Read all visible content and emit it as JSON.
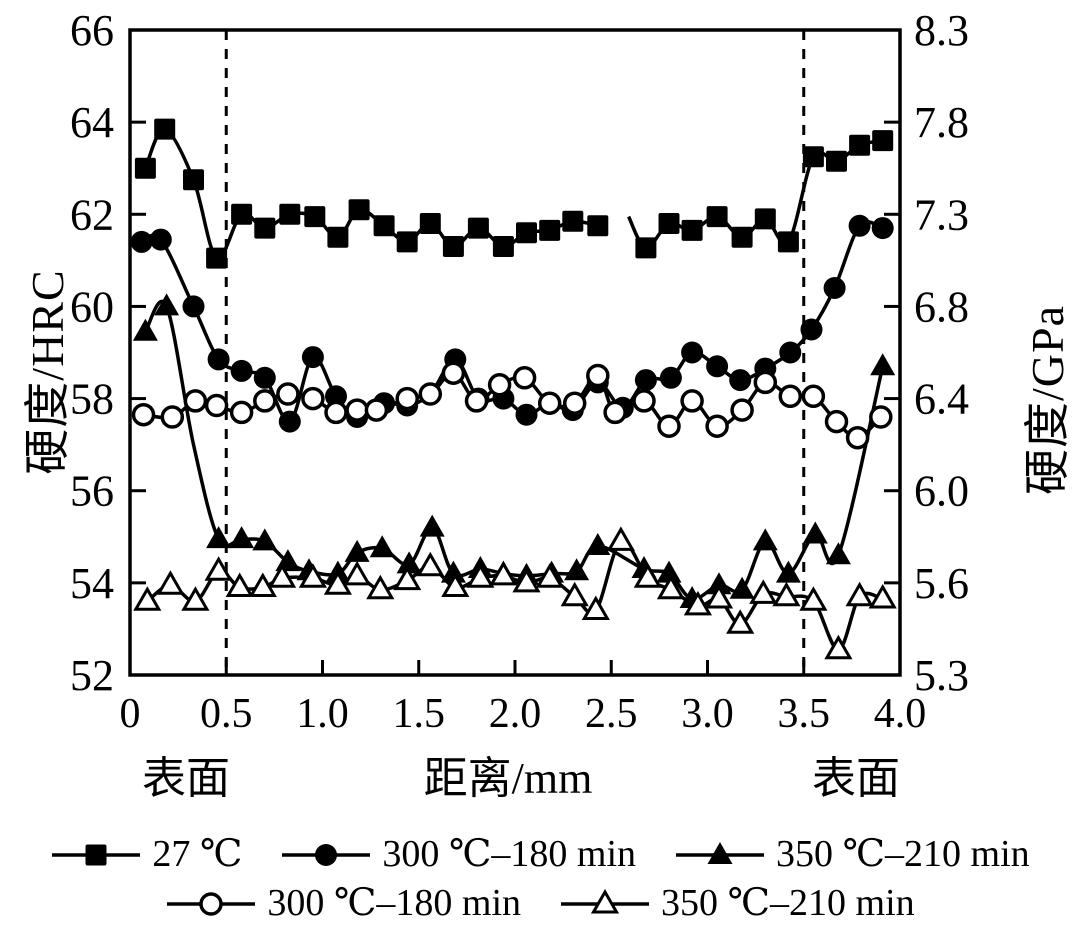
{
  "figure": {
    "background": "#ffffff",
    "ink_color": "#000000"
  },
  "chart_data": {
    "type": "line",
    "title": "",
    "xlabel": "距离/mm",
    "ylabel_left": "硬度/HRC",
    "ylabel_right": "硬度/GPa",
    "surface_left": "表面",
    "surface_right": "表面",
    "xlim": [
      0,
      4.0
    ],
    "ylim_left": [
      52,
      66
    ],
    "grid": "off",
    "guides_x_dashed": [
      0.5,
      3.5
    ],
    "x_ticks": {
      "values": [
        0,
        0.5,
        1.0,
        1.5,
        2.0,
        2.5,
        3.0,
        3.5,
        4.0
      ],
      "labels": [
        "0",
        "0.5",
        "1.0",
        "1.5",
        "2.0",
        "2.5",
        "3.0",
        "3.5",
        "4.0"
      ]
    },
    "y_left_ticks": {
      "values": [
        66,
        64,
        62,
        60,
        58,
        56,
        54,
        52
      ],
      "labels": [
        "66",
        "64",
        "62",
        "60",
        "58",
        "56",
        "54",
        "52"
      ]
    },
    "y_right_ticks": {
      "at_left_value": [
        66,
        64,
        62,
        60,
        58,
        56,
        54,
        52
      ],
      "labels": [
        "8.3",
        "7.8",
        "7.3",
        "6.8",
        "6.4",
        "6.0",
        "5.6",
        "5.3"
      ]
    },
    "legend_rows": [
      [
        0,
        1,
        2
      ],
      [
        3,
        4
      ]
    ],
    "series": [
      {
        "name": "27 ℃",
        "marker": "square-filled",
        "axis": "left-HRC",
        "x": [
          0.08,
          0.18,
          0.33,
          0.45,
          0.58,
          0.7,
          0.83,
          0.96,
          1.08,
          1.19,
          1.32,
          1.44,
          1.56,
          1.68,
          1.81,
          1.94,
          2.06,
          2.18,
          2.3,
          2.43,
          2.59,
          2.68,
          2.8,
          2.92,
          3.05,
          3.18,
          3.3,
          3.42,
          3.55,
          3.67,
          3.79,
          3.91
        ],
        "y": [
          63.0,
          63.85,
          62.75,
          61.05,
          62.0,
          61.7,
          62.0,
          61.95,
          61.5,
          62.1,
          61.75,
          61.4,
          61.8,
          61.3,
          61.7,
          61.3,
          61.6,
          61.65,
          61.85,
          61.75,
          61.95,
          61.27,
          61.8,
          61.65,
          61.95,
          61.5,
          61.9,
          61.4,
          63.25,
          63.15,
          63.5,
          63.6
        ],
        "no_marker": [
          20
        ],
        "breaks": [
          20
        ]
      },
      {
        "name": "300 ℃–180 min",
        "marker": "circle-filled",
        "axis": "left-HRC",
        "x": [
          0.06,
          0.16,
          0.33,
          0.46,
          0.58,
          0.7,
          0.83,
          0.95,
          1.07,
          1.18,
          1.32,
          1.44,
          1.56,
          1.69,
          1.81,
          1.94,
          2.06,
          2.18,
          2.3,
          2.43,
          2.56,
          2.68,
          2.81,
          2.92,
          3.05,
          3.17,
          3.3,
          3.43,
          3.54,
          3.66,
          3.79,
          3.91
        ],
        "y": [
          61.4,
          61.45,
          60.0,
          58.85,
          58.6,
          58.45,
          57.5,
          58.9,
          58.05,
          57.6,
          57.9,
          57.85,
          58.1,
          58.85,
          58.0,
          58.0,
          57.65,
          57.9,
          57.75,
          58.35,
          57.8,
          58.4,
          58.45,
          59.0,
          58.7,
          58.4,
          58.65,
          59.0,
          59.5,
          60.4,
          61.75,
          61.7
        ],
        "no_marker": [],
        "breaks": []
      },
      {
        "name": "350 ℃–210 min",
        "marker": "triangle-filled",
        "axis": "left-HRC",
        "x": [
          0.08,
          0.19,
          0.33,
          0.46,
          0.58,
          0.7,
          0.82,
          0.93,
          1.08,
          1.18,
          1.31,
          1.45,
          1.57,
          1.68,
          1.82,
          1.94,
          2.06,
          2.19,
          2.32,
          2.43,
          2.67,
          2.8,
          2.92,
          3.06,
          3.18,
          3.3,
          3.42,
          3.56,
          3.68,
          3.91
        ],
        "y": [
          59.45,
          60.0,
          57.0,
          54.95,
          54.95,
          54.9,
          54.45,
          54.25,
          54.2,
          54.65,
          54.75,
          54.4,
          55.2,
          54.2,
          54.3,
          54.2,
          54.15,
          54.2,
          54.25,
          54.8,
          54.3,
          54.2,
          53.65,
          53.95,
          53.85,
          54.9,
          54.2,
          55.05,
          54.6,
          58.7
        ],
        "no_marker": [
          2
        ],
        "breaks": []
      },
      {
        "name": "300 ℃–180 min",
        "marker": "circle-open",
        "axis": "right-GPa",
        "x": [
          0.07,
          0.22,
          0.34,
          0.45,
          0.58,
          0.7,
          0.82,
          0.95,
          1.07,
          1.18,
          1.28,
          1.44,
          1.56,
          1.68,
          1.8,
          1.92,
          2.05,
          2.18,
          2.31,
          2.43,
          2.52,
          2.67,
          2.8,
          2.92,
          3.05,
          3.18,
          3.3,
          3.43,
          3.55,
          3.67,
          3.78,
          3.9
        ],
        "y": [
          57.65,
          57.6,
          57.95,
          57.85,
          57.7,
          57.95,
          58.1,
          58.0,
          57.7,
          57.75,
          57.75,
          58.0,
          58.1,
          58.55,
          57.95,
          58.3,
          58.45,
          57.9,
          57.9,
          58.5,
          57.7,
          57.95,
          57.4,
          57.95,
          57.4,
          57.75,
          58.35,
          58.05,
          58.05,
          57.5,
          57.15,
          57.6
        ],
        "no_marker": [],
        "breaks": []
      },
      {
        "name": "350 ℃–210 min",
        "marker": "triangle-open",
        "axis": "right-GPa",
        "x": [
          0.09,
          0.21,
          0.34,
          0.46,
          0.57,
          0.69,
          0.79,
          0.95,
          1.08,
          1.18,
          1.3,
          1.44,
          1.56,
          1.69,
          1.82,
          1.94,
          2.06,
          2.18,
          2.31,
          2.42,
          2.55,
          2.69,
          2.81,
          2.95,
          3.06,
          3.17,
          3.29,
          3.41,
          3.55,
          3.68,
          3.79,
          3.91
        ],
        "y": [
          53.6,
          53.95,
          53.6,
          54.25,
          53.9,
          53.9,
          54.1,
          54.1,
          53.95,
          54.15,
          53.85,
          54.05,
          54.35,
          53.9,
          54.1,
          54.15,
          54.0,
          54.1,
          53.7,
          53.4,
          54.9,
          54.1,
          53.85,
          53.5,
          53.65,
          53.1,
          53.75,
          53.7,
          53.6,
          52.55,
          53.7,
          53.65
        ],
        "no_marker": [],
        "breaks": []
      }
    ]
  }
}
